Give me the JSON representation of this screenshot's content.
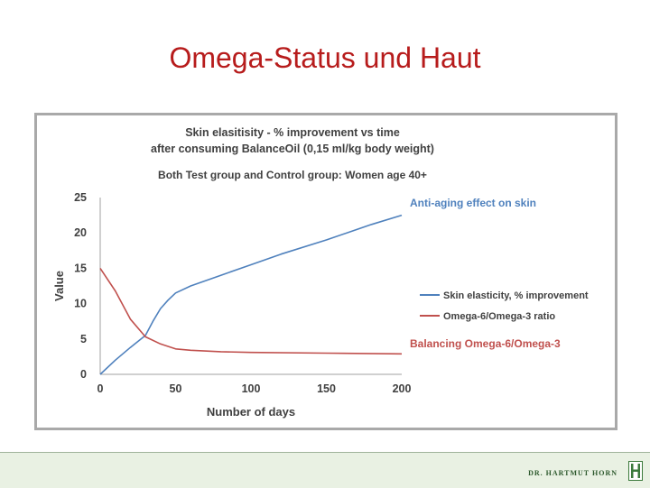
{
  "slide": {
    "title": "Omega-Status und Haut"
  },
  "footer": {
    "author": "DR. HARTMUT HORN",
    "logo_icon": "green-monogram-icon"
  },
  "chart_data": {
    "type": "line",
    "title_lines": [
      "Skin elasitisity - % improvement  vs time",
      "after consuming BalanceOil (0,15 ml/kg body weight)"
    ],
    "subtitle": "Both Test group and Control group: Women age 40+",
    "xlabel": "Number of days",
    "ylabel": "Value",
    "xlim": [
      0,
      200
    ],
    "ylim": [
      0,
      25
    ],
    "x_ticks": [
      0,
      50,
      100,
      150,
      200
    ],
    "y_ticks": [
      0,
      5,
      10,
      15,
      20,
      25
    ],
    "grid": false,
    "legend_position": "right",
    "series": [
      {
        "name": "Skin elasticity, % improvement",
        "color": "#4f81bd",
        "x": [
          0,
          10,
          20,
          30,
          35,
          40,
          45,
          50,
          60,
          80,
          100,
          120,
          150,
          180,
          200
        ],
        "y": [
          0,
          2,
          3.8,
          5.5,
          7.5,
          9.3,
          10.5,
          11.5,
          12.5,
          14,
          15.5,
          17,
          19,
          21.2,
          22.5
        ]
      },
      {
        "name": "Omega-6/Omega-3 ratio",
        "color": "#c0504d",
        "x": [
          0,
          10,
          20,
          30,
          40,
          50,
          60,
          80,
          100,
          150,
          200
        ],
        "y": [
          15,
          11.8,
          7.8,
          5.3,
          4.3,
          3.6,
          3.4,
          3.2,
          3.1,
          3.0,
          2.9
        ]
      }
    ],
    "annotations": [
      {
        "text": "Anti-aging effect on skin",
        "color": "#4f81bd"
      },
      {
        "text": "Balancing Omega-6/Omega-3",
        "color": "#c0504d"
      }
    ]
  }
}
